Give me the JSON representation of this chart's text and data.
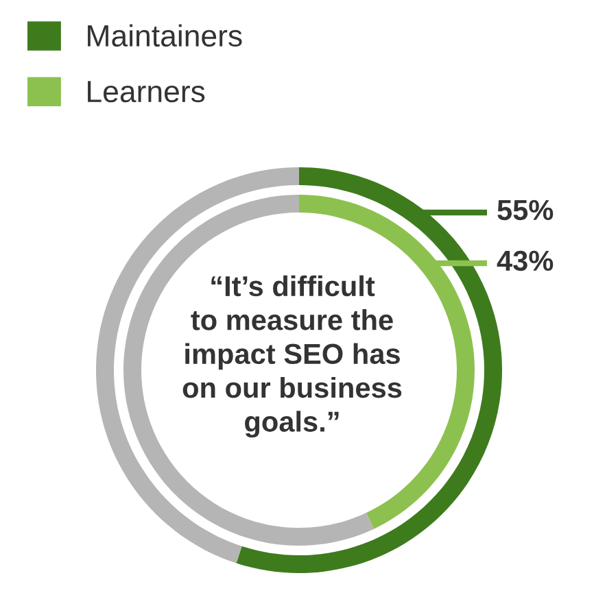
{
  "chart_data": {
    "type": "donut",
    "title": "“It’s difficult\nto measure the\nimpact SEO has\non our business\ngoals.”",
    "categories": [
      null,
      null
    ],
    "series": [
      {
        "name": "Maintainers",
        "colors": [
          "#3e7b1d",
          "#b5b5b5"
        ],
        "values": [
          55,
          45
        ],
        "value_labels": [
          "55%",
          null
        ]
      },
      {
        "name": "Learners",
        "colors": [
          "#8dc14f",
          "#b5b5b5"
        ],
        "values": [
          43,
          57
        ],
        "value_labels": [
          "43%",
          null
        ]
      }
    ],
    "legend": "top left"
  }
}
